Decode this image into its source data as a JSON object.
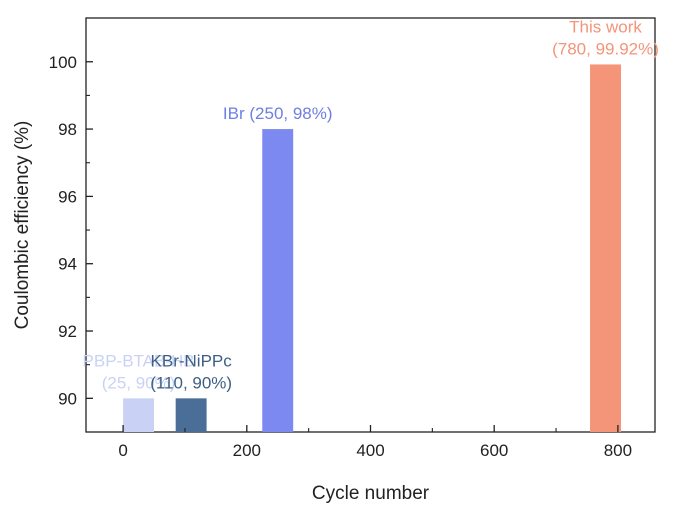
{
  "chart_data": {
    "type": "bar",
    "xlabel": "Cycle number",
    "ylabel": "Coulombic efficiency (%)",
    "xlim": [
      -60,
      860
    ],
    "ylim": [
      89,
      101.3
    ],
    "x_ticks": [
      0,
      200,
      400,
      600,
      800
    ],
    "y_ticks": [
      90,
      92,
      94,
      96,
      98,
      100
    ],
    "grid": false,
    "legend": "none",
    "bars": [
      {
        "label_lines": [
          "PBP-BTAB-HB",
          "(25, 90%)"
        ],
        "x": 25,
        "y": 90,
        "color": "#c9d2f5",
        "label_color": "#c9d2f5"
      },
      {
        "label_lines": [
          "KBr-NiPPc",
          "(110, 90%)"
        ],
        "x": 110,
        "y": 90,
        "color": "#4a6e98",
        "label_color": "#3d5f86"
      },
      {
        "label_lines": [
          "IBr (250, 98%)"
        ],
        "x": 250,
        "y": 98,
        "color": "#7c89f0",
        "label_color": "#6f7fe0"
      },
      {
        "label_lines": [
          "This work",
          "(780, 99.92%)"
        ],
        "x": 780,
        "y": 99.92,
        "color": "#f49478",
        "label_color": "#f49478"
      }
    ]
  }
}
